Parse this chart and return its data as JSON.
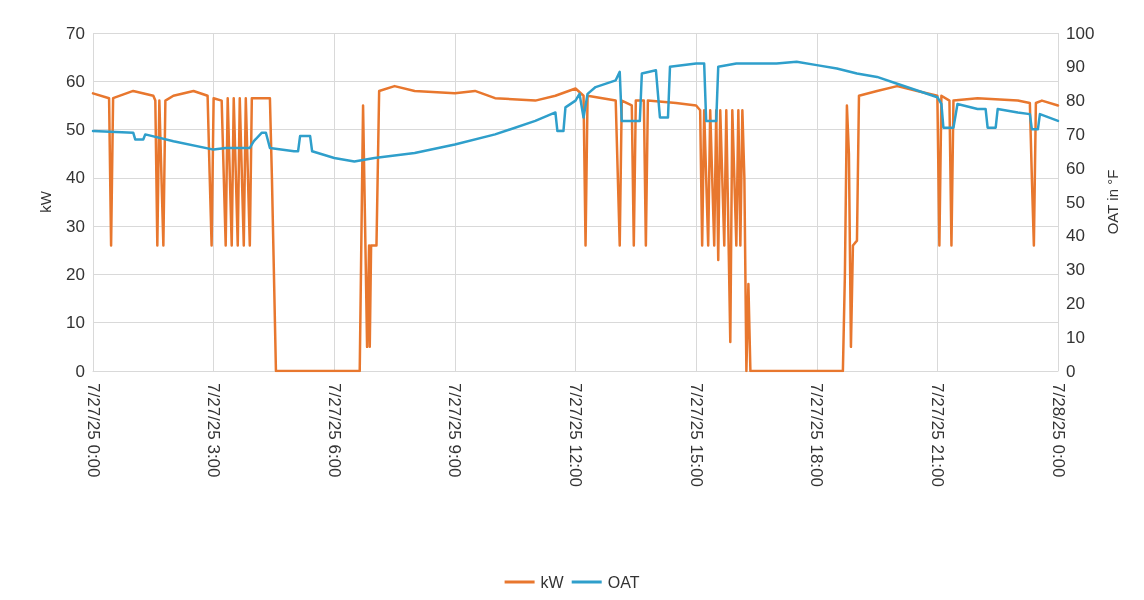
{
  "chart_data": {
    "type": "line",
    "ylabel": "kW",
    "y2label": "OAT in °F",
    "xlim": [
      "--07-27T00:00",
      "--07-28T00:00"
    ],
    "xticks": [
      {
        "value": "--07-27T00:00",
        "label": "7/27/25 0:00"
      },
      {
        "value": "--07-27T03:00",
        "label": "7/27/25 3:00"
      },
      {
        "value": "--07-27T06:00",
        "label": "7/27/25 6:00"
      },
      {
        "value": "--07-27T09:00",
        "label": "7/27/25 9:00"
      },
      {
        "value": "--07-27T12:00",
        "label": "7/27/25 12:00"
      },
      {
        "value": "--07-27T15:00",
        "label": "7/27/25 15:00"
      },
      {
        "value": "--07-27T18:00",
        "label": "7/27/25 18:00"
      },
      {
        "value": "--07-27T21:00",
        "label": "7/27/25 21:00"
      },
      {
        "value": "--07-28T00:00",
        "label": "7/28/25 0:00"
      }
    ],
    "ylim": [
      0,
      70
    ],
    "yticks": [
      0,
      10,
      20,
      30,
      40,
      50,
      60,
      70
    ],
    "y2lim": [
      0,
      100
    ],
    "y2ticks": [
      0,
      10,
      20,
      30,
      40,
      50,
      60,
      70,
      80,
      90,
      100
    ],
    "grid": true,
    "legend": "bottom",
    "marker": "none",
    "line_style": "solid",
    "series": [
      {
        "name": "kW",
        "color": "#e8772e",
        "x": [
          "--07-27T00:00",
          "--07-27T00:24",
          "--07-27T00:27",
          "--07-27T00:30",
          "--07-27T01:00",
          "--07-27T01:30",
          "--07-27T01:33",
          "--07-27T01:36",
          "--07-27T01:39",
          "--07-27T01:45",
          "--07-27T01:48",
          "--07-27T02:00",
          "--07-27T02:30",
          "--07-27T02:51",
          "--07-27T02:54",
          "--07-27T02:57",
          "--07-27T03:00",
          "--07-27T03:12",
          "--07-27T03:18",
          "--07-27T03:21",
          "--07-27T03:27",
          "--07-27T03:30",
          "--07-27T03:36",
          "--07-27T03:39",
          "--07-27T03:45",
          "--07-27T03:48",
          "--07-27T03:54",
          "--07-27T03:57",
          "--07-27T04:24",
          "--07-27T04:27",
          "--07-27T04:33",
          "--07-27T06:38",
          "--07-27T06:40",
          "--07-27T06:43",
          "--07-27T06:47",
          "--07-27T06:49",
          "--07-27T06:52",
          "--07-27T06:53",
          "--07-27T06:55",
          "--07-27T07:03",
          "--07-27T07:07",
          "--07-27T07:30",
          "--07-27T08:00",
          "--07-27T09:00",
          "--07-27T09:30",
          "--07-27T10:00",
          "--07-27T11:00",
          "--07-27T11:30",
          "--07-27T12:00",
          "--07-27T12:12",
          "--07-27T12:15",
          "--07-27T12:18",
          "--07-27T13:00",
          "--07-27T13:06",
          "--07-27T13:09",
          "--07-27T13:24",
          "--07-27T13:27",
          "--07-27T13:30",
          "--07-27T13:42",
          "--07-27T13:45",
          "--07-27T13:48",
          "--07-27T14:30",
          "--07-27T15:00",
          "--07-27T15:06",
          "--07-27T15:09",
          "--07-27T15:12",
          "--07-27T15:18",
          "--07-27T15:21",
          "--07-27T15:27",
          "--07-27T15:30",
          "--07-27T15:33",
          "--07-27T15:36",
          "--07-27T15:42",
          "--07-27T15:45",
          "--07-27T15:51",
          "--07-27T15:54",
          "--07-27T16:00",
          "--07-27T16:03",
          "--07-27T16:06",
          "--07-27T16:09",
          "--07-27T16:12",
          "--07-27T16:15",
          "--07-27T16:18",
          "--07-27T16:21",
          "--07-27T18:39",
          "--07-27T18:42",
          "--07-27T18:45",
          "--07-27T18:48",
          "--07-27T18:51",
          "--07-27T18:54",
          "--07-27T19:00",
          "--07-27T19:03",
          "--07-27T19:30",
          "--07-27T20:00",
          "--07-27T20:30",
          "--07-27T21:00",
          "--07-27T21:03",
          "--07-27T21:06",
          "--07-27T21:18",
          "--07-27T21:21",
          "--07-27T21:24",
          "--07-27T22:00",
          "--07-27T23:00",
          "--07-27T23:18",
          "--07-27T23:21",
          "--07-27T23:24",
          "--07-27T23:27",
          "--07-27T23:36",
          "--07-28T00:00"
        ],
        "values": [
          57.5,
          56.5,
          26,
          56.5,
          58,
          57,
          56,
          26,
          56,
          26,
          56,
          57,
          58,
          57,
          41,
          26,
          56.5,
          56,
          26,
          56.5,
          26,
          56.5,
          26,
          56.5,
          26,
          56.5,
          26,
          56.5,
          56.5,
          40,
          0,
          0,
          22,
          55,
          22,
          5,
          26,
          5,
          26,
          26,
          58,
          59,
          58,
          57.5,
          58,
          56.5,
          56,
          57,
          58.5,
          57,
          26,
          57,
          56,
          26,
          56,
          55,
          26,
          56,
          56,
          26,
          56,
          55.5,
          55,
          54,
          26,
          54,
          26,
          54,
          26,
          54,
          23,
          54,
          26,
          54,
          6,
          54,
          26,
          54,
          26,
          54,
          40,
          0,
          18,
          0,
          0,
          20,
          55,
          45,
          5,
          26,
          27,
          57,
          58,
          59,
          58,
          57,
          26,
          57,
          56,
          26,
          56,
          56.5,
          56,
          55.5,
          40,
          26,
          55.5,
          56,
          55
        ]
      },
      {
        "name": "OAT",
        "color": "#2f9fcb",
        "axis": "y2",
        "x": [
          "--07-27T00:00",
          "--07-27T01:00",
          "--07-27T01:03",
          "--07-27T01:15",
          "--07-27T01:18",
          "--07-27T02:00",
          "--07-27T03:00",
          "--07-27T03:18",
          "--07-27T03:54",
          "--07-27T04:00",
          "--07-27T04:12",
          "--07-27T04:18",
          "--07-27T04:24",
          "--07-27T05:00",
          "--07-27T05:06",
          "--07-27T05:09",
          "--07-27T05:24",
          "--07-27T05:27",
          "--07-27T06:00",
          "--07-27T06:30",
          "--07-27T07:00",
          "--07-27T08:00",
          "--07-27T09:00",
          "--07-27T10:00",
          "--07-27T11:00",
          "--07-27T11:30",
          "--07-27T11:33",
          "--07-27T11:42",
          "--07-27T11:45",
          "--07-27T12:00",
          "--07-27T12:06",
          "--07-27T12:12",
          "--07-27T12:18",
          "--07-27T12:30",
          "--07-27T13:00",
          "--07-27T13:06",
          "--07-27T13:09",
          "--07-27T13:36",
          "--07-27T13:39",
          "--07-27T14:00",
          "--07-27T14:06",
          "--07-27T14:18",
          "--07-27T14:21",
          "--07-27T15:00",
          "--07-27T15:12",
          "--07-27T15:15",
          "--07-27T15:30",
          "--07-27T15:33",
          "--07-27T16:00",
          "--07-27T17:00",
          "--07-27T17:30",
          "--07-27T18:00",
          "--07-27T18:30",
          "--07-27T19:00",
          "--07-27T19:30",
          "--07-27T20:00",
          "--07-27T20:30",
          "--07-27T21:00",
          "--07-27T21:06",
          "--07-27T21:09",
          "--07-27T21:24",
          "--07-27T21:30",
          "--07-27T22:00",
          "--07-27T22:12",
          "--07-27T22:15",
          "--07-27T22:27",
          "--07-27T22:30",
          "--07-27T23:00",
          "--07-27T23:18",
          "--07-27T23:21",
          "--07-27T23:30",
          "--07-27T23:33",
          "--07-28T00:00"
        ],
        "values": [
          71,
          70.5,
          68.5,
          68.5,
          70,
          68,
          65.5,
          66,
          66,
          68,
          70.5,
          70.5,
          66,
          65,
          65,
          69.5,
          69.5,
          65,
          63,
          62,
          63,
          64.5,
          67,
          70,
          74,
          76.5,
          71,
          71,
          78,
          80,
          82,
          75,
          82,
          84,
          86,
          88.5,
          74,
          74,
          88,
          89,
          75,
          75,
          90,
          91,
          91,
          74,
          74,
          90,
          91,
          91,
          91.5,
          90.5,
          89.5,
          88,
          87,
          85,
          83,
          81,
          79,
          72,
          72,
          79,
          77.5,
          77.5,
          72,
          72,
          77.5,
          76.5,
          76,
          71.5,
          71.5,
          76,
          74
        ]
      }
    ]
  }
}
